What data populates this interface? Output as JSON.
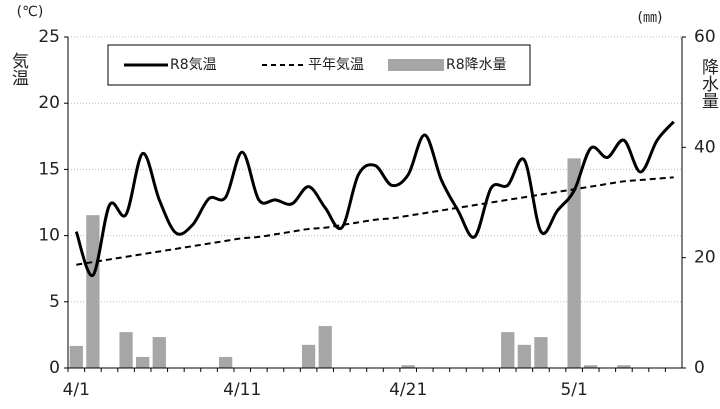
{
  "chart_data": {
    "type": "line-bar",
    "y_unit": "(℃)",
    "y2_unit": "(㎜)",
    "y_label": "気温",
    "y2_label": "降水量",
    "categories": [
      "4/1",
      null,
      null,
      null,
      null,
      null,
      null,
      null,
      null,
      null,
      "4/11",
      null,
      null,
      null,
      null,
      null,
      null,
      null,
      null,
      null,
      "4/21",
      null,
      null,
      null,
      null,
      null,
      null,
      null,
      null,
      null,
      "5/1",
      null,
      null,
      null,
      null,
      null,
      null
    ],
    "series": [
      {
        "name": "R8気温",
        "color": "#000000",
        "style": "solid",
        "values": [
          10.3,
          7.0,
          12.3,
          11.6,
          16.2,
          12.7,
          10.2,
          10.8,
          12.8,
          12.9,
          16.3,
          12.7,
          12.7,
          12.4,
          13.7,
          12.1,
          10.6,
          14.6,
          15.3,
          13.8,
          14.6,
          17.6,
          14.2,
          11.9,
          9.9,
          13.6,
          13.8,
          15.7,
          10.3,
          11.9,
          13.4,
          16.6,
          15.9,
          17.2,
          14.8,
          17.2,
          18.6
        ]
      },
      {
        "name": "平年気温",
        "color": "#000000",
        "style": "dashed",
        "values": [
          7.8,
          8.0,
          8.2,
          8.4,
          8.6,
          8.8,
          9.0,
          9.2,
          9.4,
          9.6,
          9.8,
          9.9,
          10.1,
          10.3,
          10.5,
          10.6,
          10.8,
          11.0,
          11.2,
          11.3,
          11.5,
          11.7,
          11.9,
          12.1,
          12.3,
          12.5,
          12.7,
          12.9,
          13.1,
          13.3,
          13.5,
          13.7,
          13.9,
          14.1,
          14.2,
          14.3,
          14.4
        ]
      },
      {
        "name": "R8降水量",
        "color": "#a6a6a6",
        "style": "bar",
        "axis": "y2",
        "values": [
          4,
          27.7,
          0,
          6.5,
          2,
          5.6,
          0,
          0,
          0,
          2,
          0,
          0,
          0,
          0,
          4.2,
          7.6,
          0,
          0,
          0,
          0,
          0.5,
          0,
          0,
          0,
          0,
          0,
          6.5,
          4.2,
          5.6,
          0,
          38,
          0.5,
          0,
          0.5,
          0,
          0,
          0
        ]
      }
    ],
    "ylim": [
      0,
      25
    ],
    "yticks": [
      0,
      5,
      10,
      15,
      20,
      25
    ],
    "y2lim": [
      0,
      60
    ],
    "y2ticks": [
      0,
      20,
      40,
      60
    ],
    "grid": true
  }
}
